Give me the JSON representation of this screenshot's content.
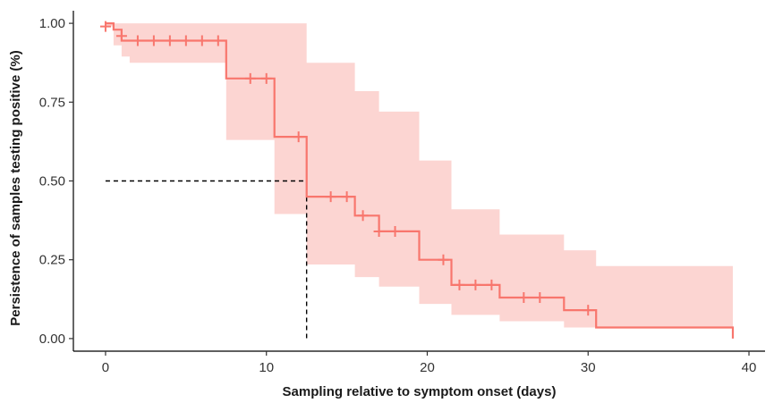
{
  "chart_data": {
    "type": "line",
    "title": "",
    "xlabel": "Sampling relative to symptom onset (days)",
    "ylabel": "Persistence of samples testing positive (%)",
    "xlim": [
      -2,
      41
    ],
    "ylim": [
      -0.04,
      1.04
    ],
    "x_ticks": [
      0,
      10,
      20,
      30,
      40
    ],
    "y_ticks": [
      "0.00",
      "0.25",
      "0.50",
      "0.75",
      "1.00"
    ],
    "grid": false,
    "legend": "none",
    "colors": {
      "line": "#f8766d",
      "band": "#fcd5d2",
      "reference": "#000000"
    },
    "survival_curve": {
      "name": "",
      "x": [
        0,
        0.5,
        1,
        7.5,
        10.5,
        12.5,
        15.5,
        17,
        19.5,
        21.5,
        24.5,
        28.5,
        30.5,
        39
      ],
      "y": [
        1.0,
        0.98,
        0.945,
        0.825,
        0.64,
        0.45,
        0.39,
        0.34,
        0.25,
        0.17,
        0.13,
        0.09,
        0.035,
        0.0
      ]
    },
    "confidence_band": {
      "x": [
        0,
        0.5,
        1,
        1.5,
        7.5,
        10.5,
        12.5,
        15.5,
        17,
        19.5,
        21.5,
        24.5,
        28.5,
        30.5,
        39
      ],
      "lower": [
        0.99,
        0.93,
        0.895,
        0.875,
        0.63,
        0.395,
        0.235,
        0.195,
        0.165,
        0.11,
        0.075,
        0.055,
        0.035,
        0.035,
        0.035
      ],
      "upper": [
        1.0,
        1.0,
        1.0,
        1.0,
        1.0,
        1.0,
        0.875,
        0.785,
        0.72,
        0.565,
        0.41,
        0.33,
        0.28,
        0.23,
        0.23
      ]
    },
    "censor_marks": {
      "x": [
        0,
        1,
        2,
        3,
        4,
        5,
        6,
        7,
        9,
        10,
        12,
        14,
        15,
        16,
        17,
        18,
        21,
        22,
        23,
        24,
        26,
        27,
        30
      ],
      "y": [
        0.99,
        0.96,
        0.945,
        0.945,
        0.945,
        0.945,
        0.945,
        0.945,
        0.825,
        0.825,
        0.64,
        0.45,
        0.45,
        0.39,
        0.34,
        0.34,
        0.25,
        0.17,
        0.17,
        0.17,
        0.13,
        0.13,
        0.09
      ]
    },
    "median_reference": {
      "x": 12.5,
      "y": 0.5
    }
  }
}
